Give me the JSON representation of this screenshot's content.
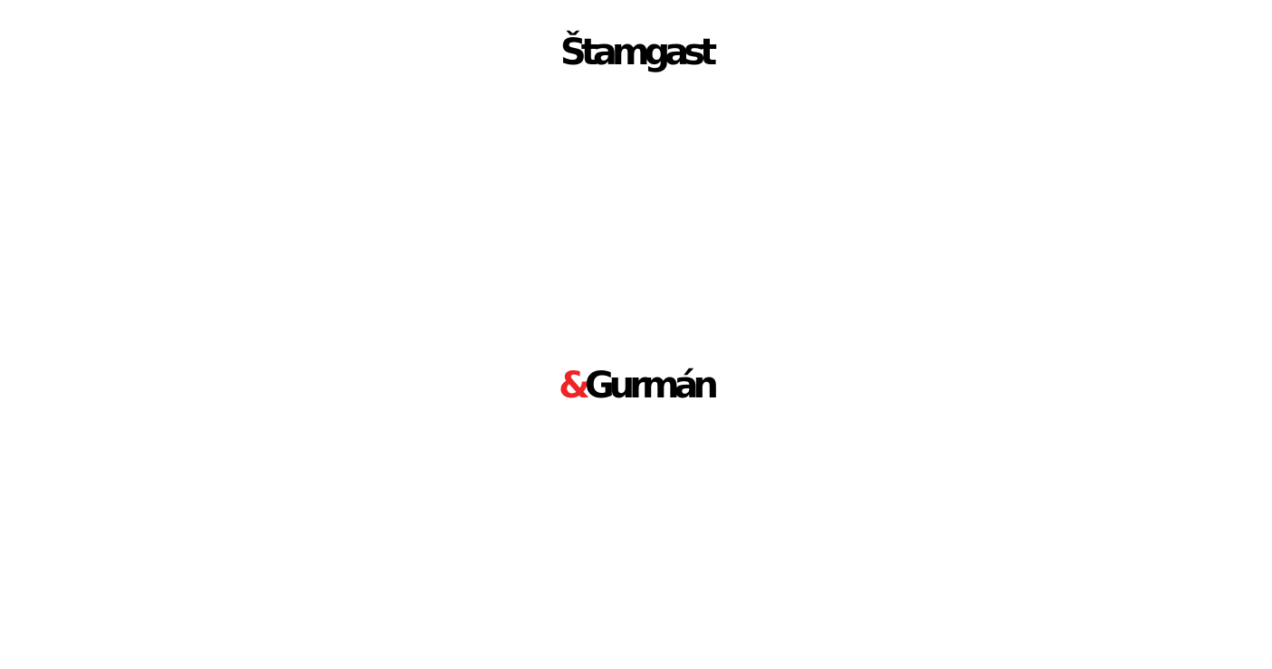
{
  "logo": {
    "line1": "Štamgast",
    "ampersand": "&",
    "line2": "Gurmán",
    "colors": {
      "text": "#000000",
      "ampersand": "#ee2527",
      "background": "#ffffff"
    }
  }
}
